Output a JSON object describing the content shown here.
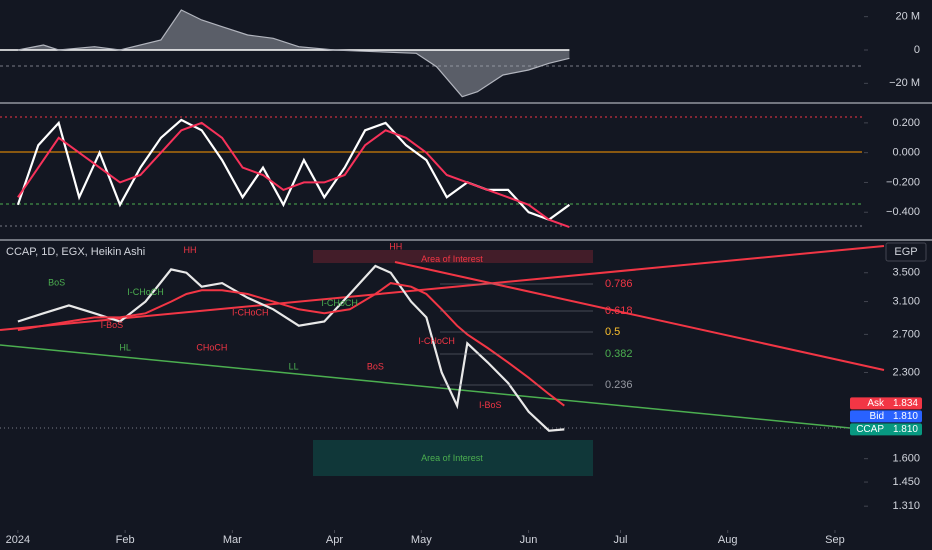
{
  "header": {
    "symbol": "CCAP, 1D, EGX, Heikin Ashi",
    "currency": "EGP"
  },
  "chart_data": [
    {
      "type": "area",
      "color": "#b2b5be",
      "x": [
        0,
        5,
        8,
        15,
        20,
        28,
        32,
        36,
        40,
        45,
        50,
        55,
        62,
        70,
        78,
        82,
        87,
        90,
        95,
        100,
        104,
        108
      ],
      "values": [
        0,
        3,
        0,
        2,
        0,
        6,
        24,
        18,
        14,
        9,
        7,
        2,
        0,
        -1,
        -2,
        -10,
        -28,
        -25,
        -15,
        -12,
        -8,
        -5
      ],
      "ylim": [
        -30,
        30
      ],
      "yticks": [
        {
          "value": 20,
          "label": "20 M"
        },
        0,
        {
          "value": -20,
          "label": "−20 M"
        }
      ]
    },
    {
      "type": "line",
      "x": [
        0,
        4,
        8,
        12,
        16,
        20,
        24,
        28,
        32,
        36,
        40,
        44,
        48,
        52,
        56,
        60,
        64,
        68,
        72,
        76,
        80,
        84,
        88,
        92,
        96,
        100,
        104,
        108
      ],
      "series": [
        {
          "color": "#ffffff",
          "values": [
            -0.35,
            0.05,
            0.2,
            -0.3,
            0.0,
            -0.35,
            -0.1,
            0.1,
            0.22,
            0.15,
            -0.05,
            -0.3,
            -0.1,
            -0.35,
            -0.05,
            -0.3,
            -0.1,
            0.15,
            0.2,
            0.05,
            -0.05,
            -0.3,
            -0.2,
            -0.25,
            -0.25,
            -0.4,
            -0.45,
            -0.35
          ]
        },
        {
          "color": "#f7325a",
          "values": [
            -0.3,
            -0.1,
            0.1,
            0.0,
            -0.1,
            -0.2,
            -0.15,
            0.0,
            0.15,
            0.2,
            0.1,
            -0.1,
            -0.15,
            -0.25,
            -0.2,
            -0.2,
            -0.15,
            0.05,
            0.15,
            0.1,
            0.0,
            -0.15,
            -0.2,
            -0.25,
            -0.3,
            -0.35,
            -0.45,
            -0.5
          ]
        }
      ],
      "ylim": [
        -0.573,
        0.32
      ],
      "yticks": [
        {
          "value": 0.2,
          "label": "0.200"
        },
        {
          "value": 0,
          "label": "0.000"
        },
        {
          "value": -0.2,
          "label": "−0.200"
        },
        {
          "value": -0.4,
          "label": "−0.400"
        }
      ]
    },
    {
      "type": "line",
      "log_scale": true,
      "x": [
        0,
        5,
        10,
        15,
        20,
        25,
        30,
        33,
        36,
        40,
        45,
        50,
        55,
        60,
        65,
        70,
        73,
        77,
        80,
        83,
        86,
        88,
        92,
        96,
        100,
        104,
        107
      ],
      "series": [
        {
          "color": "#e8e8e8",
          "values": [
            2.85,
            2.95,
            3.05,
            2.95,
            2.85,
            3.1,
            3.55,
            3.5,
            3.3,
            3.35,
            3.15,
            3.0,
            2.8,
            2.85,
            3.2,
            3.6,
            3.5,
            3.1,
            2.9,
            2.3,
            2.0,
            2.6,
            2.4,
            2.2,
            1.95,
            1.8,
            1.81
          ]
        },
        {
          "color": "#f23645",
          "values": [
            2.75,
            2.8,
            2.85,
            2.9,
            2.9,
            2.95,
            3.1,
            3.2,
            3.25,
            3.25,
            3.2,
            3.1,
            3.0,
            2.95,
            3.0,
            3.2,
            3.35,
            3.3,
            3.2,
            3.0,
            2.8,
            2.7,
            2.55,
            2.4,
            2.25,
            2.1,
            2.0
          ]
        }
      ],
      "ylim": [
        1.195,
        3.95
      ],
      "yticks": [
        {
          "value": 3.5,
          "label": "3.500"
        },
        {
          "value": 3.1,
          "label": "3.100"
        },
        {
          "value": 2.7,
          "label": "2.700"
        },
        {
          "value": 2.3,
          "label": "2.300"
        },
        {
          "value": 1.6,
          "label": "1.600"
        },
        {
          "value": 1.45,
          "label": "1.450"
        },
        {
          "value": 1.31,
          "label": "1.310"
        }
      ],
      "xlim": [
        -3.5,
        179
      ],
      "xticks": [
        {
          "value": 0,
          "label": "2024"
        },
        {
          "value": 21,
          "label": "Feb"
        },
        {
          "value": 42,
          "label": "Mar"
        },
        {
          "value": 62,
          "label": "Apr"
        },
        {
          "value": 79,
          "label": "May"
        },
        {
          "value": 100,
          "label": "Jun"
        },
        {
          "value": 118,
          "label": "Jul"
        },
        {
          "value": 139,
          "label": "Aug"
        },
        {
          "value": 160,
          "label": "Sep"
        }
      ],
      "fib_levels": [
        0.786,
        0.618,
        0.5,
        0.382,
        0.236
      ],
      "fib_colors": [
        "#f23645",
        "#f23645",
        "#fbc02d",
        "#4caf50",
        "#9598a1"
      ],
      "annotations": [
        {
          "text": "HH",
          "x": 33.7,
          "y": 3.84,
          "color": "#f23645"
        },
        {
          "text": "HH",
          "x": 74,
          "y": 3.9,
          "color": "#f23645"
        },
        {
          "text": "Area of Interest",
          "x": 85,
          "y": 3.7,
          "color": "#f23645"
        },
        {
          "text": "BoS",
          "x": 7.6,
          "y": 3.35,
          "color": "#4caf50"
        },
        {
          "text": "I-CHoCH",
          "x": 25,
          "y": 3.22,
          "color": "#4caf50"
        },
        {
          "text": "I-BoS",
          "x": 18.4,
          "y": 2.8,
          "color": "#f23645"
        },
        {
          "text": "HL",
          "x": 21,
          "y": 2.55,
          "color": "#4caf50"
        },
        {
          "text": "CHoCH",
          "x": 38,
          "y": 2.55,
          "color": "#f23645"
        },
        {
          "text": "I-CHoCH",
          "x": 45.5,
          "y": 2.95,
          "color": "#f23645"
        },
        {
          "text": "LL",
          "x": 54,
          "y": 2.35,
          "color": "#4caf50"
        },
        {
          "text": "I-CHoCH",
          "x": 63,
          "y": 3.07,
          "color": "#4caf50"
        },
        {
          "text": "BoS",
          "x": 70,
          "y": 2.35,
          "color": "#f23645"
        },
        {
          "text": "I-CHoCH",
          "x": 82,
          "y": 2.62,
          "color": "#f23645"
        },
        {
          "text": "I-BoS",
          "x": 92.5,
          "y": 2.0,
          "color": "#f23645"
        },
        {
          "text": "Area of Interest",
          "x": 85,
          "y": 1.6,
          "color": "#4caf50"
        }
      ],
      "price_badges": {
        "names": [
          "Ask",
          "Bid",
          "CCAP"
        ],
        "values": [
          1.834,
          1.81,
          1.81
        ],
        "value_labels": [
          "1.834",
          "1.810",
          "1.810"
        ],
        "colors": [
          "#f23645",
          "#2962ff",
          "#089981"
        ]
      }
    }
  ]
}
